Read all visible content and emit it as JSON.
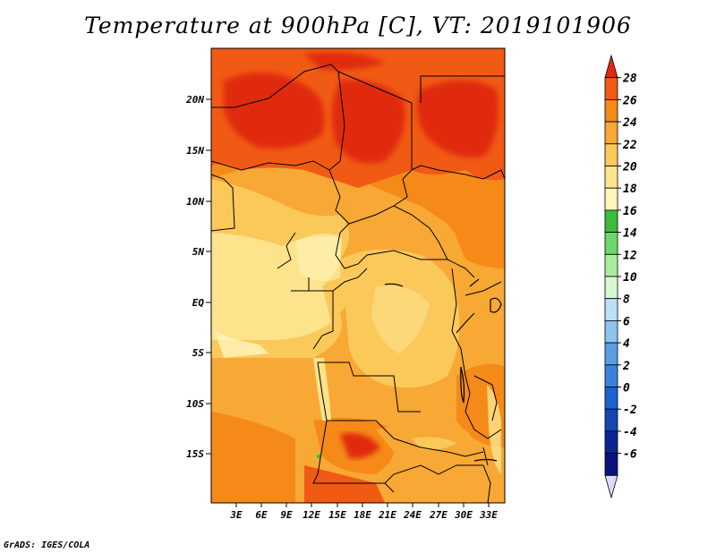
{
  "title": "Temperature at 900hPa [C], VT: 2019101906",
  "credit": "GrADS: IGES/COLA",
  "lat_labels": [
    "20N",
    "15N",
    "10N",
    "5N",
    "EQ",
    "5S",
    "10S",
    "15S"
  ],
  "lon_labels": [
    "3E",
    "6E",
    "9E",
    "12E",
    "15E",
    "18E",
    "21E",
    "24E",
    "27E",
    "30E",
    "33E"
  ],
  "colorbar": {
    "labels": [
      "28",
      "26",
      "24",
      "22",
      "20",
      "18",
      "16",
      "14",
      "12",
      "10",
      "8",
      "6",
      "4",
      "2",
      "0",
      "-2",
      "-4",
      "-6"
    ],
    "colors": [
      "#e02a10",
      "#f05a14",
      "#f58a18",
      "#f8a834",
      "#fbc85a",
      "#fde38c",
      "#fff6bc",
      "#3cbc3c",
      "#6cd86c",
      "#a8ec9c",
      "#d8f8d0",
      "#bce0f8",
      "#8cc4f0",
      "#5c9ee6",
      "#3c82dc",
      "#1c62d0",
      "#1446b4",
      "#0c2490",
      "#0a147c",
      "#dcdcf8"
    ]
  },
  "chart_data": {
    "type": "heatmap",
    "title": "Temperature at 900hPa [C], VT: 2019101906",
    "variable": "Temperature at 900hPa",
    "units": "C",
    "valid_time": "2019101906",
    "lon_range": [
      "0E",
      "35E"
    ],
    "lat_range": [
      "20S",
      "24N"
    ],
    "color_scale_levels": [
      -6,
      -4,
      -2,
      0,
      2,
      4,
      6,
      8,
      10,
      12,
      14,
      16,
      18,
      20,
      22,
      24,
      26,
      28
    ],
    "approx_field_range": [
      16,
      28
    ]
  }
}
